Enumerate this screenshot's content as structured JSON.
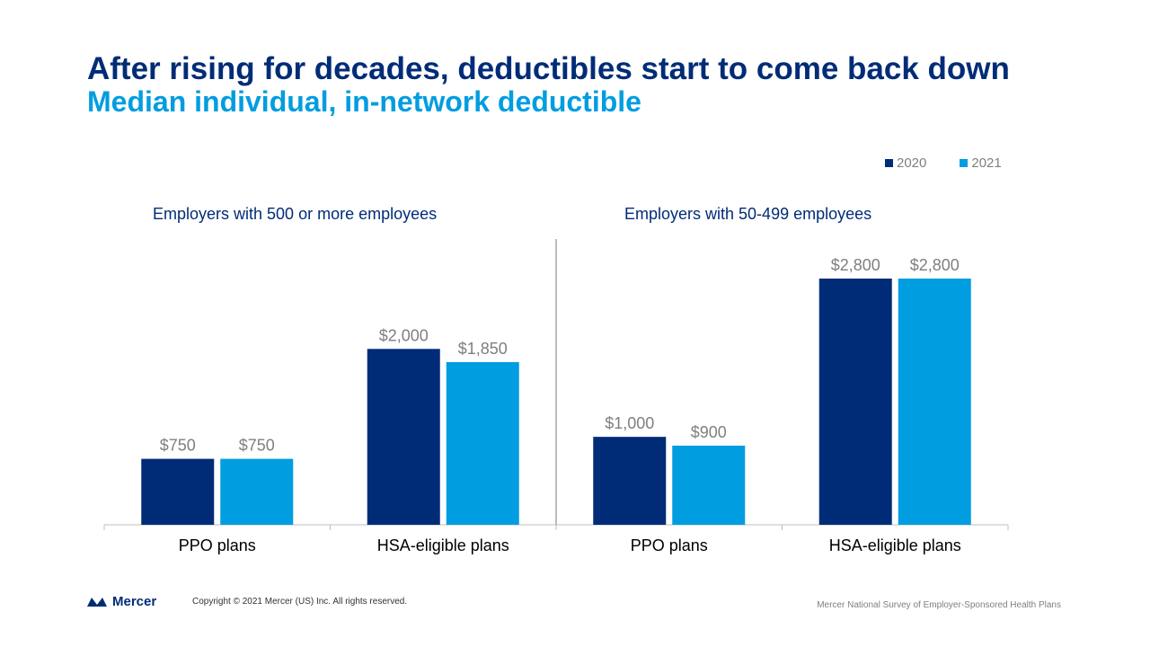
{
  "slide": {
    "title": "After rising for decades, deductibles start to come back down",
    "subtitle": "Median individual, in-network deductible"
  },
  "legend": [
    {
      "label": "2020",
      "color": "#002c77"
    },
    {
      "label": "2021",
      "color": "#009de0"
    }
  ],
  "chart_data": {
    "type": "bar",
    "legend_position": "top-right",
    "grid": false,
    "ylim": [
      0,
      3000
    ],
    "categories": [
      "PPO plans",
      "HSA-eligible plans",
      "PPO plans",
      "HSA-eligible plans"
    ],
    "groups": [
      {
        "title": "Employers with 500 or more employees",
        "categories": [
          "PPO plans",
          "HSA-eligible plans"
        ]
      },
      {
        "title": "Employers with 50-499 employees",
        "categories": [
          "PPO plans",
          "HSA-eligible plans"
        ]
      }
    ],
    "series": [
      {
        "name": "2020",
        "color": "#002c77",
        "values": [
          750,
          2000,
          1000,
          2800
        ],
        "labels": [
          "$750",
          "$2,000",
          "$1,000",
          "$2,800"
        ]
      },
      {
        "name": "2021",
        "color": "#009de0",
        "values": [
          750,
          1850,
          900,
          2800
        ],
        "labels": [
          "$750",
          "$1,850",
          "$900",
          "$2,800"
        ]
      }
    ]
  },
  "footer": {
    "logo_text": "Mercer",
    "copyright": "Copyright © 2021 Mercer (US) Inc. All rights reserved.",
    "source": "Mercer National Survey of Employer-Sponsored Health Plans"
  }
}
